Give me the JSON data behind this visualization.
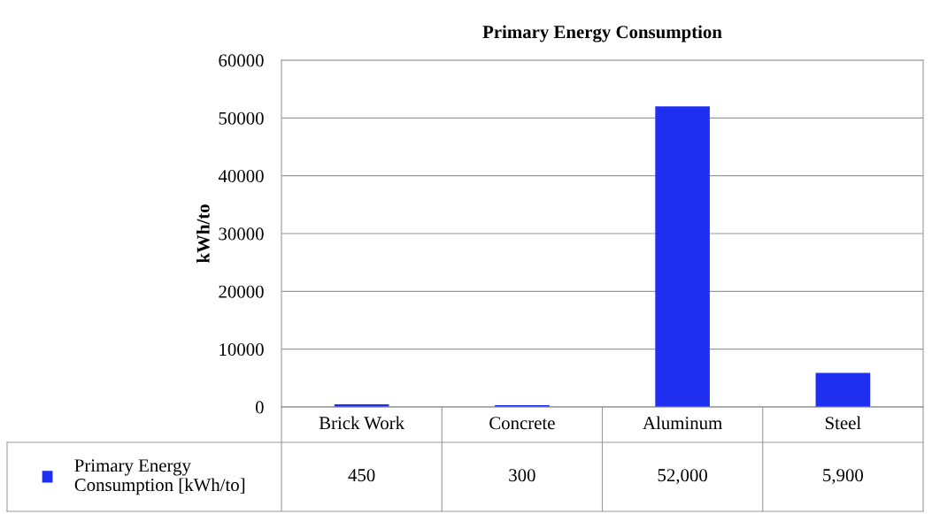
{
  "chart_data": {
    "type": "bar",
    "title": "Primary Energy Consumption",
    "ylabel": "kWh/to",
    "categories": [
      "Brick Work",
      "Concrete",
      "Aluminum",
      "Steel"
    ],
    "series": [
      {
        "name": "Primary Energy Consumption [kWh/to]",
        "color": "#1f2ff0",
        "values": [
          450,
          300,
          52000,
          5900
        ],
        "value_labels": [
          "450",
          "300",
          "52,000",
          "5,900"
        ]
      }
    ],
    "ylim": [
      0,
      60000
    ],
    "yticks": [
      0,
      10000,
      20000,
      30000,
      40000,
      50000,
      60000
    ],
    "grid": "y",
    "legend": "bottom"
  }
}
